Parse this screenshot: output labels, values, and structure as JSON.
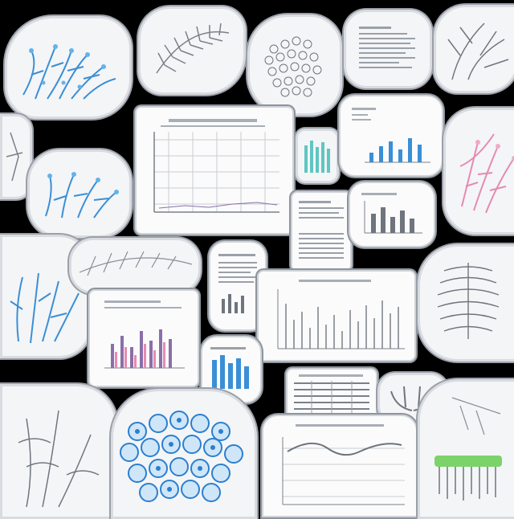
{
  "image": {
    "description_tag": "collage-of-scientific-illustration-stickers",
    "background_color": "#000000",
    "accent_colors": {
      "blue": "#3a8fd6",
      "teal": "#5fc6c2",
      "pink": "#e58bb0",
      "green": "#7bd36a",
      "gray": "#8a8f96",
      "purple": "#8a6fa8"
    }
  }
}
